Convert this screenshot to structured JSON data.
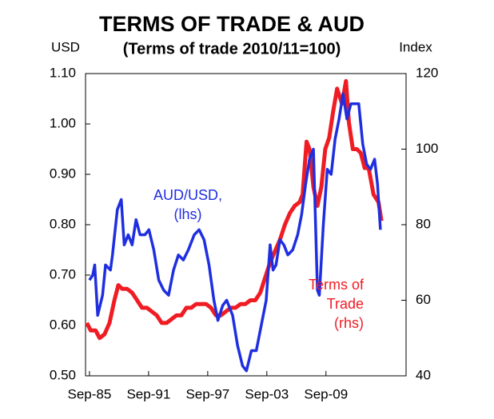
{
  "chart_data": {
    "type": "line",
    "title": "TERMS OF TRADE & AUD",
    "subtitle": "(Terms of trade 2010/11=100)",
    "ylabel": "USD",
    "y2label": "Index",
    "xlim": [
      1985.27,
      2017.8
    ],
    "xticks": [
      {
        "value": 1985.67,
        "label": "Sep-85"
      },
      {
        "value": 1991.67,
        "label": "Sep-91"
      },
      {
        "value": 1997.67,
        "label": "Sep-97"
      },
      {
        "value": 2003.67,
        "label": "Sep-03"
      },
      {
        "value": 2009.67,
        "label": "Sep-09"
      }
    ],
    "ylim": [
      0.5,
      1.1
    ],
    "yticks": [
      {
        "value": 0.5,
        "label": "0.50"
      },
      {
        "value": 0.6,
        "label": "0.60"
      },
      {
        "value": 0.7,
        "label": "0.70"
      },
      {
        "value": 0.8,
        "label": "0.80"
      },
      {
        "value": 0.9,
        "label": "0.90"
      },
      {
        "value": 1.0,
        "label": "1.00"
      },
      {
        "value": 1.1,
        "label": "1.10"
      }
    ],
    "y2lim": [
      40,
      120
    ],
    "y2ticks": [
      40,
      60,
      80,
      100,
      120
    ],
    "series": [
      {
        "color": "#1f2fe0",
        "x": [
          1985.67,
          1986.0,
          1986.2,
          1986.5,
          1987.0,
          1987.3,
          1987.8,
          1988.0,
          1988.5,
          1988.9,
          1989.2,
          1989.6,
          1990.0,
          1990.4,
          1990.8,
          1991.3,
          1991.7,
          1992.2,
          1992.7,
          1993.2,
          1993.7,
          1994.2,
          1994.7,
          1995.2,
          1995.7,
          1996.3,
          1996.8,
          1997.3,
          1997.8,
          1998.3,
          1998.7,
          1999.2,
          1999.6,
          2000.2,
          2000.7,
          2001.2,
          2001.6,
          2002.1,
          2002.6,
          2003.1,
          2003.6,
          2004.0,
          2004.3,
          2004.6,
          2005.0,
          2005.4,
          2005.8,
          2006.3,
          2006.8,
          2007.2,
          2007.6,
          2008.0,
          2008.4,
          2008.8,
          2009.0,
          2009.4,
          2009.8,
          2010.2,
          2010.6,
          2011.0,
          2011.4,
          2011.8,
          2012.2,
          2012.6,
          2013.0,
          2013.4,
          2013.8,
          2014.2,
          2014.6,
          2014.9,
          2015.2
        ],
        "values": [
          0.69,
          0.7,
          0.72,
          0.62,
          0.66,
          0.72,
          0.71,
          0.74,
          0.83,
          0.85,
          0.76,
          0.78,
          0.76,
          0.81,
          0.78,
          0.78,
          0.79,
          0.75,
          0.69,
          0.67,
          0.66,
          0.71,
          0.74,
          0.73,
          0.75,
          0.78,
          0.79,
          0.77,
          0.72,
          0.65,
          0.61,
          0.64,
          0.65,
          0.62,
          0.56,
          0.52,
          0.51,
          0.55,
          0.55,
          0.6,
          0.65,
          0.76,
          0.71,
          0.72,
          0.77,
          0.76,
          0.74,
          0.75,
          0.78,
          0.82,
          0.88,
          0.93,
          0.95,
          0.67,
          0.66,
          0.8,
          0.91,
          0.9,
          0.97,
          1.01,
          1.06,
          1.01,
          1.04,
          1.04,
          1.04,
          0.96,
          0.92,
          0.91,
          0.93,
          0.88,
          0.79
        ]
      },
      {
        "color": "#f01c24",
        "axis": "y2",
        "x": [
          1985.4,
          1985.8,
          1986.3,
          1986.7,
          1987.2,
          1987.7,
          1988.2,
          1988.6,
          1989.0,
          1989.5,
          1990.0,
          1990.5,
          1991.0,
          1991.5,
          1992.0,
          1992.5,
          1993.0,
          1993.5,
          1994.0,
          1994.5,
          1995.0,
          1995.5,
          1996.0,
          1996.5,
          1997.0,
          1997.5,
          1998.0,
          1998.5,
          1999.0,
          1999.5,
          2000.0,
          2000.5,
          2001.0,
          2001.5,
          2002.0,
          2002.5,
          2003.0,
          2003.5,
          2004.0,
          2004.5,
          2005.0,
          2005.5,
          2006.0,
          2006.5,
          2007.0,
          2007.3,
          2007.7,
          2008.0,
          2008.4,
          2008.8,
          2009.2,
          2009.6,
          2010.0,
          2010.4,
          2010.8,
          2011.3,
          2011.7,
          2012.0,
          2012.4,
          2012.8,
          2013.2,
          2013.6,
          2014.0,
          2014.5,
          2015.0,
          2015.3
        ],
        "values": [
          54,
          52,
          52,
          50,
          51,
          54,
          60,
          64,
          63,
          63,
          62,
          60,
          58,
          58,
          57,
          56,
          54,
          54,
          55,
          56,
          56,
          58,
          58,
          59,
          59,
          59,
          58,
          56,
          56,
          57,
          58,
          58,
          59,
          59,
          60,
          60,
          62,
          66,
          70,
          73,
          76,
          80,
          83,
          85,
          86,
          88,
          102,
          100,
          90,
          85,
          90,
          100,
          103,
          110,
          116,
          112,
          118,
          107,
          100,
          100,
          99,
          95,
          95,
          88,
          86,
          81
        ]
      }
    ],
    "annotations": [
      {
        "lines": [
          "AUD/USD,",
          "(lhs)"
        ]
      },
      {
        "lines": [
          "Terms of",
          "Trade",
          "(rhs)"
        ]
      }
    ]
  }
}
